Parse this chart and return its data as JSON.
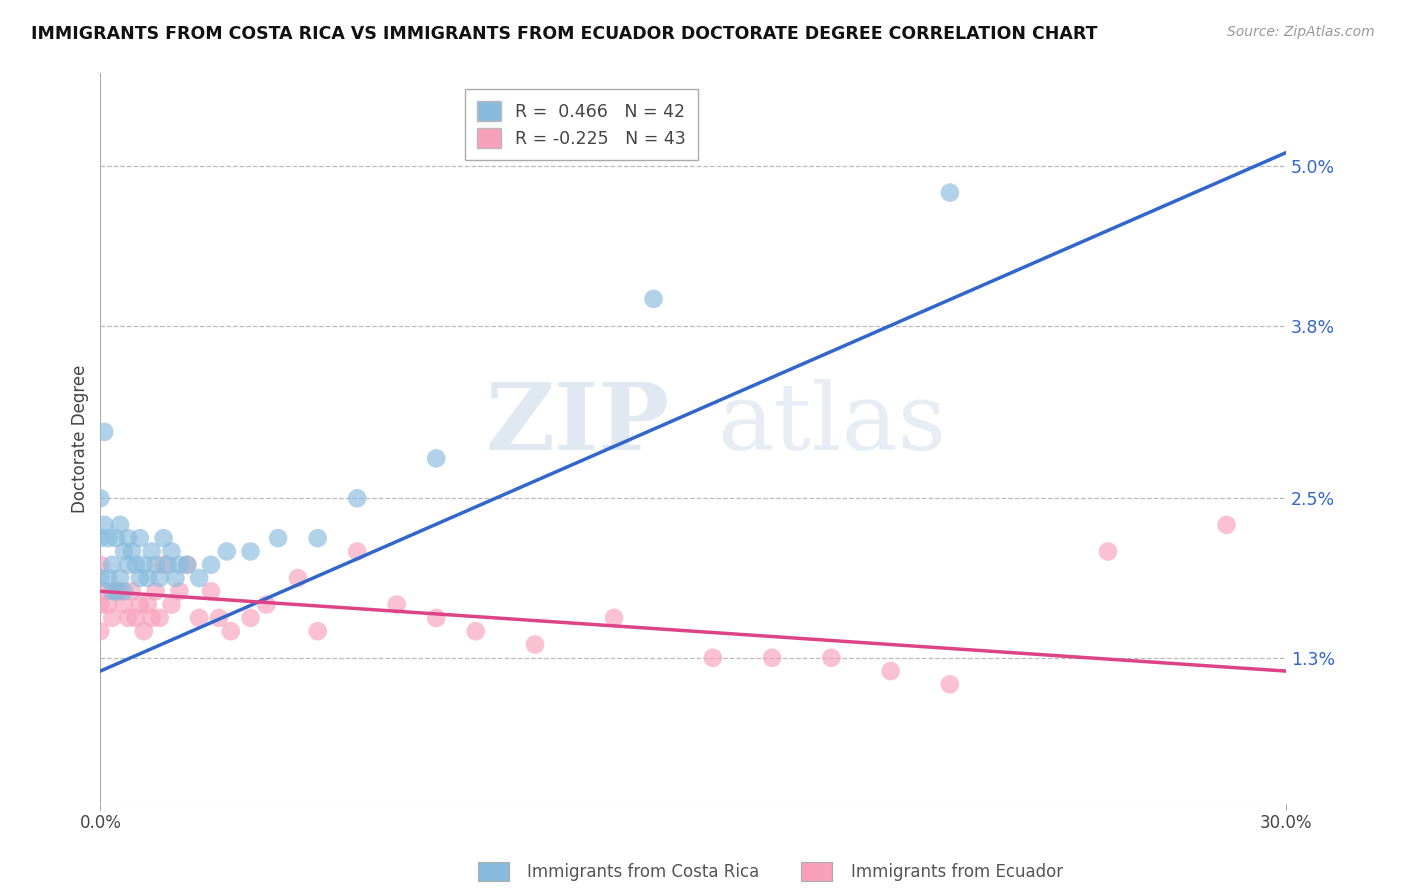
{
  "title": "IMMIGRANTS FROM COSTA RICA VS IMMIGRANTS FROM ECUADOR DOCTORATE DEGREE CORRELATION CHART",
  "source": "Source: ZipAtlas.com",
  "ylabel": "Doctorate Degree",
  "yticks_labels": [
    "1.3%",
    "2.5%",
    "3.8%",
    "5.0%"
  ],
  "ytick_vals": [
    0.013,
    0.025,
    0.038,
    0.05
  ],
  "xticks_labels": [
    "0.0%",
    "30.0%"
  ],
  "xtick_vals": [
    0.0,
    0.3
  ],
  "xlim": [
    0.0,
    0.3
  ],
  "ylim": [
    0.002,
    0.057
  ],
  "legend_label1": "R =  0.466   N = 42",
  "legend_label2": "R = -0.225   N = 43",
  "color1": "#88bbdd",
  "color2": "#f8a0bc",
  "line_color1": "#3366cc",
  "line_color2": "#dd4488",
  "watermark_color": "#ccdde8",
  "background": "#ffffff",
  "grid_color": "#bbbbbb",
  "bottom_legend1": "Immigrants from Costa Rica",
  "bottom_legend2": "Immigrants from Ecuador",
  "cr_x": [
    0.0,
    0.0,
    0.0,
    0.001,
    0.001,
    0.002,
    0.002,
    0.003,
    0.003,
    0.004,
    0.004,
    0.005,
    0.005,
    0.006,
    0.006,
    0.007,
    0.007,
    0.008,
    0.009,
    0.01,
    0.01,
    0.011,
    0.012,
    0.013,
    0.014,
    0.015,
    0.016,
    0.017,
    0.018,
    0.019,
    0.02,
    0.022,
    0.025,
    0.028,
    0.032,
    0.038,
    0.045,
    0.055,
    0.065,
    0.085,
    0.14,
    0.215
  ],
  "cr_y": [
    0.025,
    0.022,
    0.019,
    0.03,
    0.023,
    0.022,
    0.019,
    0.02,
    0.018,
    0.022,
    0.018,
    0.023,
    0.019,
    0.021,
    0.018,
    0.022,
    0.02,
    0.021,
    0.02,
    0.019,
    0.022,
    0.02,
    0.019,
    0.021,
    0.02,
    0.019,
    0.022,
    0.02,
    0.021,
    0.019,
    0.02,
    0.02,
    0.019,
    0.02,
    0.021,
    0.021,
    0.022,
    0.022,
    0.025,
    0.028,
    0.04,
    0.048
  ],
  "ec_x": [
    0.0,
    0.0,
    0.0,
    0.001,
    0.002,
    0.003,
    0.004,
    0.005,
    0.006,
    0.007,
    0.008,
    0.009,
    0.01,
    0.011,
    0.012,
    0.013,
    0.014,
    0.015,
    0.016,
    0.018,
    0.02,
    0.022,
    0.025,
    0.028,
    0.03,
    0.033,
    0.038,
    0.042,
    0.05,
    0.055,
    0.065,
    0.075,
    0.085,
    0.095,
    0.11,
    0.13,
    0.155,
    0.17,
    0.185,
    0.2,
    0.215,
    0.255,
    0.285
  ],
  "ec_y": [
    0.02,
    0.017,
    0.015,
    0.018,
    0.017,
    0.016,
    0.018,
    0.018,
    0.017,
    0.016,
    0.018,
    0.016,
    0.017,
    0.015,
    0.017,
    0.016,
    0.018,
    0.016,
    0.02,
    0.017,
    0.018,
    0.02,
    0.016,
    0.018,
    0.016,
    0.015,
    0.016,
    0.017,
    0.019,
    0.015,
    0.021,
    0.017,
    0.016,
    0.015,
    0.014,
    0.016,
    0.013,
    0.013,
    0.013,
    0.012,
    0.011,
    0.021,
    0.023
  ],
  "cr_line_x0": 0.0,
  "cr_line_y0": 0.012,
  "cr_line_x1": 0.3,
  "cr_line_y1": 0.051,
  "ec_line_x0": 0.0,
  "ec_line_y0": 0.018,
  "ec_line_x1": 0.3,
  "ec_line_y1": 0.012
}
